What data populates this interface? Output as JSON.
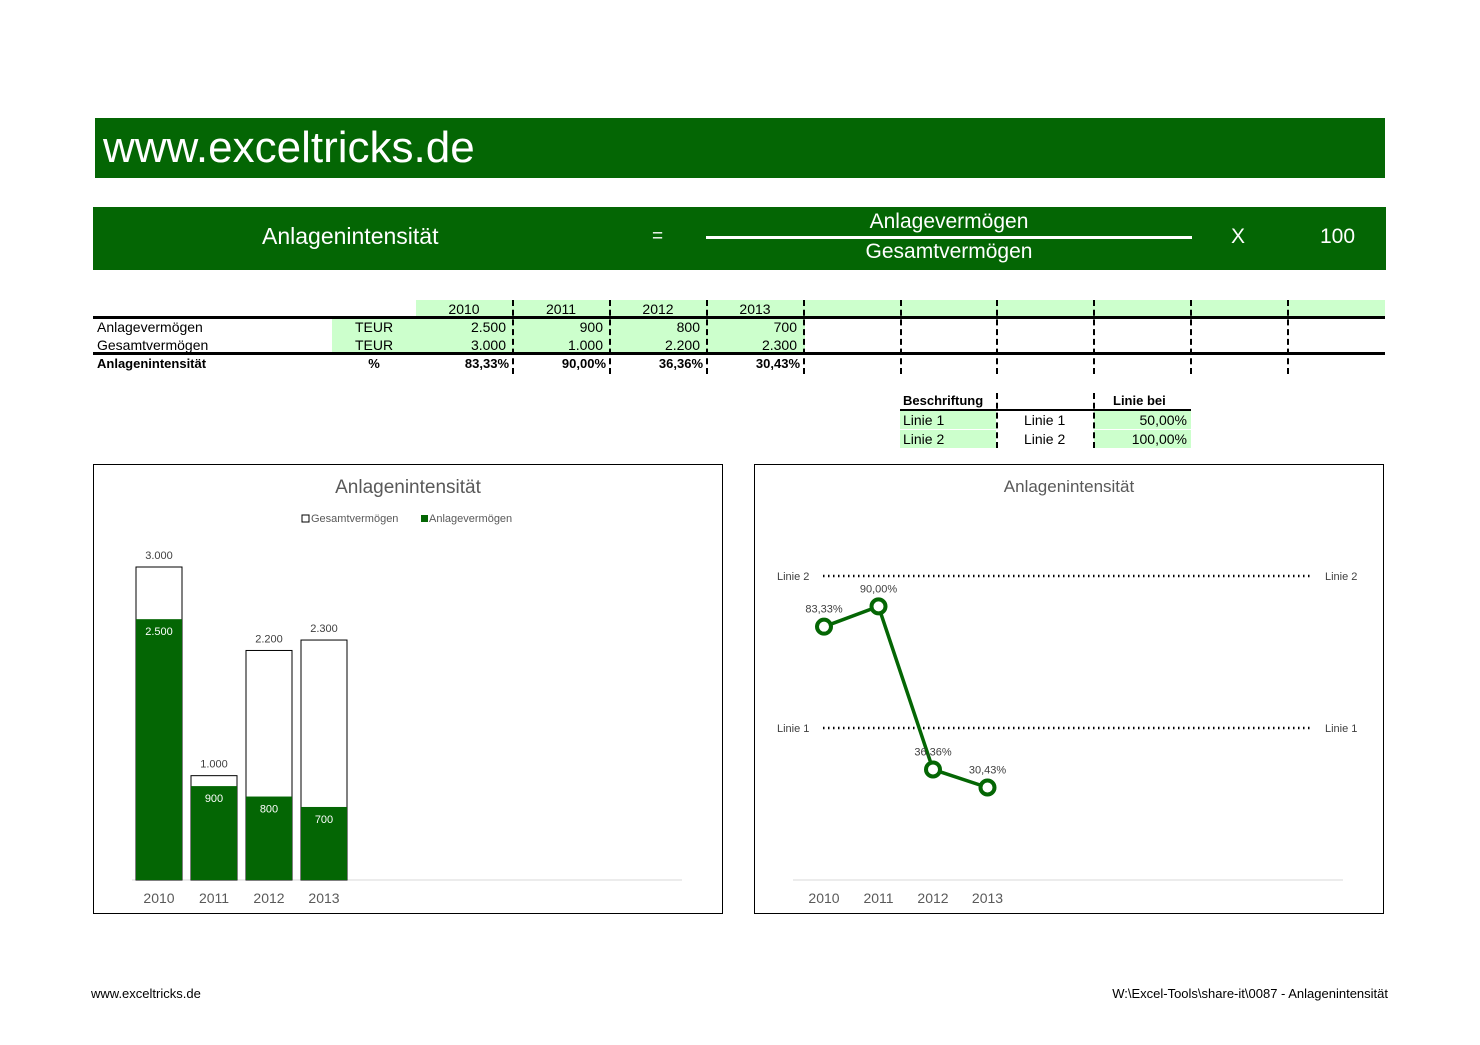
{
  "banner": {
    "site": "www.exceltricks.de"
  },
  "formula": {
    "lhs": "Anlagenintensität",
    "equals": "=",
    "numerator": "Anlagevermögen",
    "denominator": "Gesamtvermögen",
    "times": "X",
    "factor": "100"
  },
  "table": {
    "years": [
      "2010",
      "2011",
      "2012",
      "2013"
    ],
    "rows": [
      {
        "label": "Anlagevermögen",
        "unit": "TEUR",
        "values": [
          "2.500",
          "900",
          "800",
          "700"
        ]
      },
      {
        "label": "Gesamtvermögen",
        "unit": "TEUR",
        "values": [
          "3.000",
          "1.000",
          "2.200",
          "2.300"
        ]
      },
      {
        "label": "Anlagenintensität",
        "unit": "%",
        "values": [
          "83,33%",
          "90,00%",
          "36,36%",
          "30,43%"
        ]
      }
    ]
  },
  "lines_table": {
    "header_label": "Beschriftung",
    "header_value": "Linie bei",
    "rows": [
      {
        "name": "Linie 1",
        "label": "Linie 1",
        "value": "50,00%"
      },
      {
        "name": "Linie 2",
        "label": "Linie 2",
        "value": "100,00%"
      }
    ]
  },
  "chart_data": [
    {
      "type": "bar",
      "title": "Anlagenintensität",
      "categories": [
        "2010",
        "2011",
        "2012",
        "2013"
      ],
      "series": [
        {
          "name": "Gesamtvermögen",
          "values": [
            3000,
            1000,
            2200,
            2300
          ],
          "labels": [
            "3.000",
            "1.000",
            "2.200",
            "2.300"
          ],
          "color": "#ffffff"
        },
        {
          "name": "Anlagevermögen",
          "values": [
            2500,
            900,
            800,
            700
          ],
          "labels": [
            "2.500",
            "900",
            "800",
            "700"
          ],
          "color": "#046604"
        }
      ],
      "ylim": [
        0,
        3000
      ],
      "legend": "top"
    },
    {
      "type": "line",
      "title": "Anlagenintensität",
      "categories": [
        "2010",
        "2011",
        "2012",
        "2013"
      ],
      "values": [
        83.33,
        90.0,
        36.36,
        30.43
      ],
      "labels": [
        "83,33%",
        "90,00%",
        "36,36%",
        "30,43%"
      ],
      "color": "#046604",
      "ylim": [
        0,
        100
      ],
      "reference_lines": [
        {
          "label": "Linie 1",
          "value": 50
        },
        {
          "label": "Linie 2",
          "value": 100
        }
      ]
    }
  ],
  "footer": {
    "left": "www.exceltricks.de",
    "right": "W:\\Excel-Tools\\share-it\\0087 - Anlagenintensität"
  }
}
